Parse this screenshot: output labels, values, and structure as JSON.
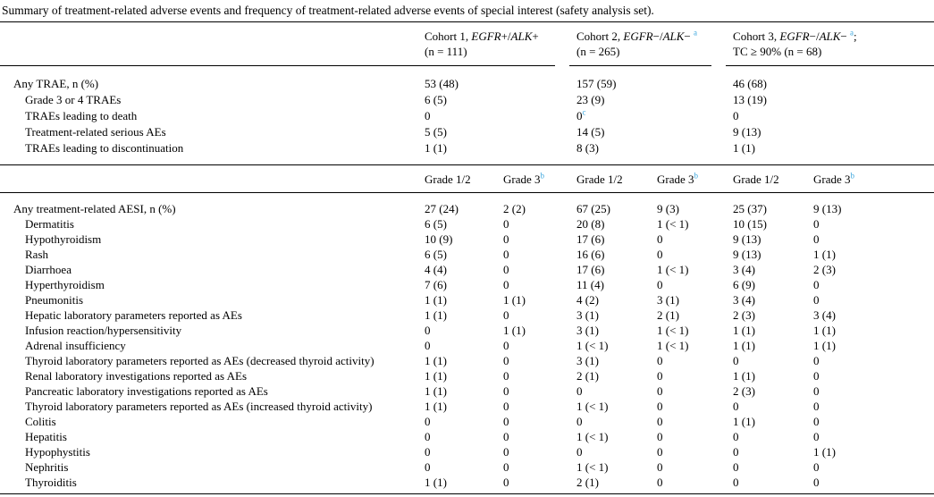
{
  "title": "Summary of treatment-related adverse events and frequency of treatment-related adverse events of special interest (safety analysis set).",
  "colors": {
    "background": "#ffffff",
    "text": "#000000",
    "rule": "#000000",
    "superscript_blue": "#3ba6dd"
  },
  "cohort_headers": [
    {
      "line1_parts": [
        {
          "t": "Cohort 1, "
        },
        {
          "t": "EGFR",
          "i": true
        },
        {
          "t": "+/"
        },
        {
          "t": "ALK",
          "i": true
        },
        {
          "t": "+"
        }
      ],
      "line2": "(n = 111)"
    },
    {
      "line1_parts": [
        {
          "t": "Cohort 2, "
        },
        {
          "t": "EGFR",
          "i": true
        },
        {
          "t": "−/"
        },
        {
          "t": "ALK",
          "i": true
        },
        {
          "t": "− "
        },
        {
          "t": "a",
          "sup": true
        }
      ],
      "line2": "(n = 265)"
    },
    {
      "line1_parts": [
        {
          "t": "Cohort 3, "
        },
        {
          "t": "EGFR",
          "i": true
        },
        {
          "t": "−/"
        },
        {
          "t": "ALK",
          "i": true
        },
        {
          "t": "− "
        },
        {
          "t": "a",
          "sup": true
        },
        {
          "t": ";"
        }
      ],
      "line2": "TC ≥ 90% (n = 68)"
    }
  ],
  "trae_section": {
    "rows": [
      {
        "label": "Any TRAE, n (%)",
        "indent": 0,
        "values": [
          "53 (48)",
          "157 (59)",
          "46 (68)"
        ]
      },
      {
        "label": "Grade 3 or 4 TRAEs",
        "indent": 1,
        "values": [
          "6 (5)",
          "23 (9)",
          "13 (19)"
        ]
      },
      {
        "label": "TRAEs leading to death",
        "indent": 1,
        "values": [
          "0",
          "0^c",
          "0"
        ]
      },
      {
        "label": "Treatment-related serious AEs",
        "indent": 1,
        "values": [
          "5 (5)",
          "14 (5)",
          "9 (13)"
        ]
      },
      {
        "label": "TRAEs leading to discontinuation",
        "indent": 1,
        "values": [
          "1 (1)",
          "8 (3)",
          "1 (1)"
        ]
      }
    ]
  },
  "grade_header_row": [
    "Grade 1/2",
    "Grade 3^b",
    "Grade 1/2",
    "Grade 3^b",
    "Grade 1/2",
    "Grade 3^b"
  ],
  "aesi_section": {
    "rows": [
      {
        "label": "Any treatment-related AESI, n (%)",
        "indent": 0,
        "values": [
          "27 (24)",
          "2 (2)",
          "67 (25)",
          "9 (3)",
          "25 (37)",
          "9 (13)"
        ]
      },
      {
        "label": "Dermatitis",
        "indent": 1,
        "values": [
          "6 (5)",
          "0",
          "20 (8)",
          "1 (< 1)",
          "10 (15)",
          "0"
        ]
      },
      {
        "label": "Hypothyroidism",
        "indent": 1,
        "values": [
          "10 (9)",
          "0",
          "17 (6)",
          "0",
          "9 (13)",
          "0"
        ]
      },
      {
        "label": "Rash",
        "indent": 1,
        "values": [
          "6 (5)",
          "0",
          "16 (6)",
          "0",
          "9 (13)",
          "1 (1)"
        ]
      },
      {
        "label": "Diarrhoea",
        "indent": 1,
        "values": [
          "4 (4)",
          "0",
          "17 (6)",
          "1 (< 1)",
          "3 (4)",
          "2 (3)"
        ]
      },
      {
        "label": "Hyperthyroidism",
        "indent": 1,
        "values": [
          "7 (6)",
          "0",
          "11 (4)",
          "0",
          "6 (9)",
          "0"
        ]
      },
      {
        "label": "Pneumonitis",
        "indent": 1,
        "values": [
          "1 (1)",
          "1 (1)",
          "4 (2)",
          "3 (1)",
          "3 (4)",
          "0"
        ]
      },
      {
        "label": "Hepatic laboratory parameters reported as AEs",
        "indent": 1,
        "values": [
          "1 (1)",
          "0",
          "3 (1)",
          "2 (1)",
          "2 (3)",
          "3 (4)"
        ]
      },
      {
        "label": "Infusion reaction/hypersensitivity",
        "indent": 1,
        "values": [
          "0",
          "1 (1)",
          "3 (1)",
          "1 (< 1)",
          "1 (1)",
          "1 (1)"
        ]
      },
      {
        "label": "Adrenal insufficiency",
        "indent": 1,
        "values": [
          "0",
          "0",
          "1 (< 1)",
          "1 (< 1)",
          "1 (1)",
          "1 (1)"
        ]
      },
      {
        "label": "Thyroid laboratory parameters reported as AEs (decreased thyroid activity)",
        "indent": 1,
        "values": [
          "1 (1)",
          "0",
          "3 (1)",
          "0",
          "0",
          "0"
        ]
      },
      {
        "label": "Renal laboratory investigations reported as AEs",
        "indent": 1,
        "values": [
          "1 (1)",
          "0",
          "2 (1)",
          "0",
          "1 (1)",
          "0"
        ]
      },
      {
        "label": "Pancreatic laboratory investigations reported as AEs",
        "indent": 1,
        "values": [
          "1 (1)",
          "0",
          "0",
          "0",
          "2 (3)",
          "0"
        ]
      },
      {
        "label": "Thyroid laboratory parameters reported as AEs (increased thyroid activity)",
        "indent": 1,
        "values": [
          "1 (1)",
          "0",
          "1 (< 1)",
          "0",
          "0",
          "0"
        ]
      },
      {
        "label": "Colitis",
        "indent": 1,
        "values": [
          "0",
          "0",
          "0",
          "0",
          "1 (1)",
          "0"
        ]
      },
      {
        "label": "Hepatitis",
        "indent": 1,
        "values": [
          "0",
          "0",
          "1 (< 1)",
          "0",
          "0",
          "0"
        ]
      },
      {
        "label": "Hypophystitis",
        "indent": 1,
        "values": [
          "0",
          "0",
          "0",
          "0",
          "0",
          "1 (1)"
        ]
      },
      {
        "label": "Nephritis",
        "indent": 1,
        "values": [
          "0",
          "0",
          "1 (< 1)",
          "0",
          "0",
          "0"
        ]
      },
      {
        "label": "Thyroiditis",
        "indent": 1,
        "values": [
          "1 (1)",
          "0",
          "2 (1)",
          "0",
          "0",
          "0"
        ]
      }
    ]
  }
}
